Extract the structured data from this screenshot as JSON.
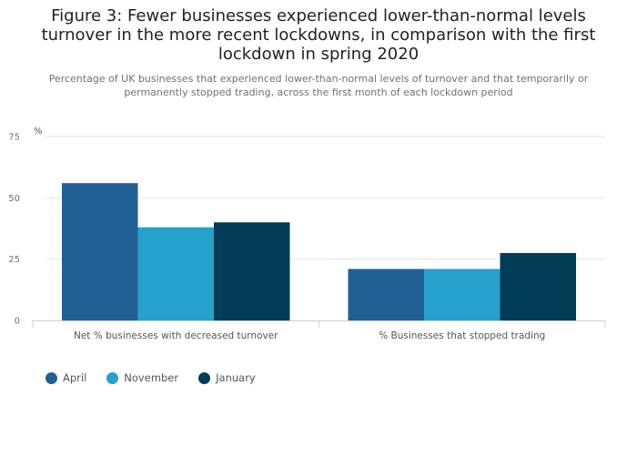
{
  "title": "Figure 3: Fewer businesses experienced lower-than-normal levels turnover in the more recent lockdowns, in comparison with the first lockdown in spring 2020",
  "subtitle": "Percentage of UK businesses that experienced lower-than-normal levels of turnover and that temporarily or permanently stopped trading, across the first month of each lockdown period",
  "chart_data": {
    "type": "bar",
    "title": "Figure 3: Fewer businesses experienced lower-than-normal levels turnover in the more recent lockdowns, in comparison with the first lockdown in spring 2020",
    "ylabel": "%",
    "xlabel": "",
    "ylim": [
      0,
      75
    ],
    "yticks": [
      0,
      25,
      50,
      75
    ],
    "grid": true,
    "legend_position": "bottom-left",
    "categories": [
      "Net % businesses with decreased turnover",
      "% Businesses that stopped trading"
    ],
    "series": [
      {
        "name": "April",
        "color": "#206095",
        "values": [
          56,
          21
        ]
      },
      {
        "name": "November",
        "color": "#27a0cc",
        "values": [
          38,
          21
        ]
      },
      {
        "name": "January",
        "color": "#003c57",
        "values": [
          40,
          27.5
        ]
      }
    ]
  }
}
